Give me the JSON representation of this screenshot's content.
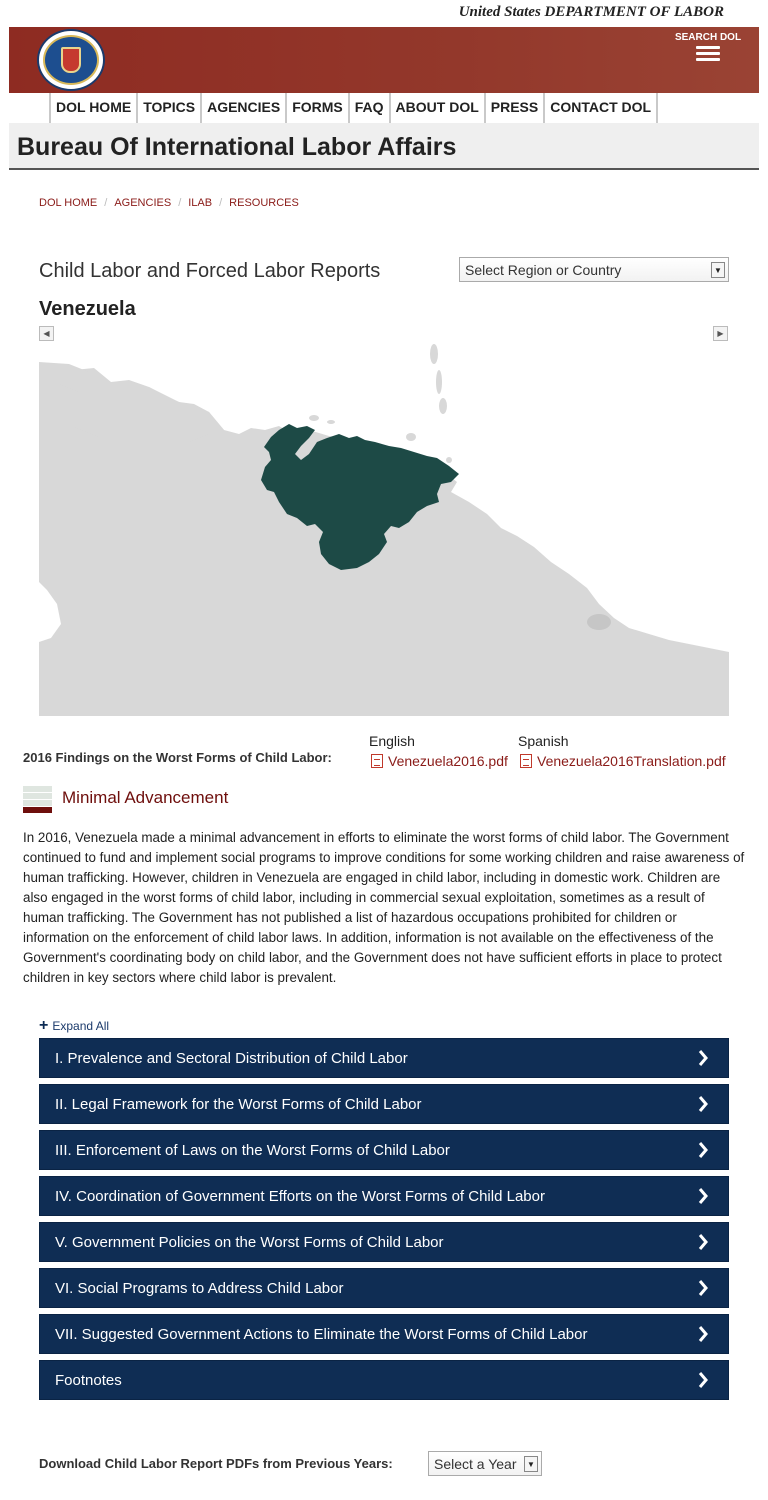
{
  "header": {
    "department_line": "United States DEPARTMENT OF LABOR",
    "search_label": "SEARCH DOL",
    "seal_icon": "dol-seal-icon"
  },
  "nav": {
    "items": [
      "DOL HOME",
      "TOPICS",
      "AGENCIES",
      "FORMS",
      "FAQ",
      "ABOUT DOL",
      "PRESS",
      "CONTACT DOL"
    ]
  },
  "agency": {
    "title": "Bureau Of International Labor Affairs"
  },
  "breadcrumb": [
    "DOL HOME",
    "AGENCIES",
    "ILAB",
    "RESOURCES"
  ],
  "reports": {
    "title": "Child Labor and Forced Labor Reports",
    "region_select": "Select Region or Country",
    "country": "Venezuela",
    "map": {
      "land_color": "#d8d8d8",
      "highlight_color": "#1d4a46"
    }
  },
  "findings": {
    "label": "2016 Findings on the Worst Forms of Child Labor:",
    "english_label": "English",
    "spanish_label": "Spanish",
    "english_file": "Venezuela2016.pdf",
    "spanish_file": "Venezuela2016Translation.pdf",
    "assessment": "Minimal Advancement",
    "assessment_color": "#6e0e0c"
  },
  "summary": "In 2016, Venezuela made a minimal advancement in efforts to eliminate the worst forms of child labor. The Government continued to fund and implement social programs to improve conditions for some working children and raise awareness of human trafficking. However, children in Venezuela are engaged in child labor, including in domestic work. Children are also engaged in the worst forms of child labor, including in commercial sexual exploitation, sometimes as a result of human trafficking. The Government has not published a list of hazardous occupations prohibited for children or information on the enforcement of child labor laws. In addition, information is not available on the effectiveness of the Government's coordinating body on child labor, and the Government does not have sufficient efforts in place to protect children in key sectors where child labor is prevalent.",
  "expand_all": "Expand All",
  "sections": [
    "I. Prevalence and Sectoral Distribution of Child Labor",
    "II. Legal Framework for the Worst Forms of Child Labor",
    "III. Enforcement of Laws on the Worst Forms of Child Labor",
    "IV. Coordination of Government Efforts on the Worst Forms of Child Labor",
    "V. Government Policies on the Worst Forms of Child Labor",
    "VI. Social Programs to Address Child Labor",
    "VII. Suggested Government Actions to Eliminate the Worst Forms of Child Labor",
    "Footnotes"
  ],
  "accordion_color": "#0f2d54",
  "previous_years": {
    "label": "Download Child Labor Report PDFs from Previous Years:",
    "select": "Select a Year"
  }
}
